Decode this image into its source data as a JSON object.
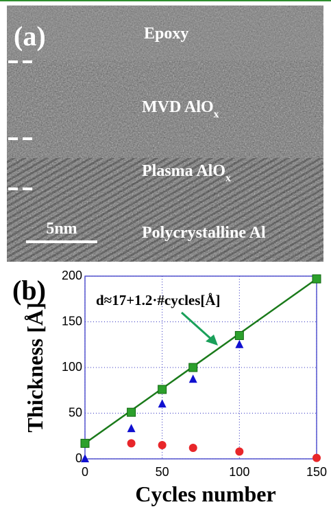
{
  "panel_a": {
    "label": "(a)",
    "layers": [
      {
        "label": "Epoxy"
      },
      {
        "label": "MVD AlO",
        "subscript": "x"
      },
      {
        "label": "Plasma AlO",
        "subscript": "x"
      },
      {
        "label": "Polycrystalline Al"
      }
    ],
    "scale_bar": "5nm"
  },
  "chart_data": {
    "type": "scatter",
    "panel_label": "(b)",
    "annotation": "d≈17+1.2·#cycles[Å]",
    "x_label": "Cycles number",
    "y_label": "Thickness [Å]",
    "xlim": [
      0,
      150
    ],
    "ylim": [
      0,
      200
    ],
    "xticks": [
      0,
      50,
      100,
      150
    ],
    "yticks": [
      0,
      50,
      100,
      150,
      200
    ],
    "grid": true,
    "series": [
      {
        "color": "#1a7a1a",
        "marker": "line",
        "x": [
          0,
          150
        ],
        "values": [
          17,
          197
        ]
      },
      {
        "color": "#2ca02c",
        "marker": "square",
        "x": [
          0,
          30,
          50,
          70,
          100,
          150
        ],
        "values": [
          17,
          51,
          76,
          100,
          135,
          197
        ]
      },
      {
        "color": "#1010d0",
        "marker": "triangle",
        "x": [
          0,
          30,
          50,
          70,
          100
        ],
        "values": [
          0,
          33,
          60,
          87,
          125
        ]
      },
      {
        "color": "#e8262a",
        "marker": "circle",
        "x": [
          30,
          50,
          70,
          100,
          150
        ],
        "values": [
          17,
          15,
          12,
          8,
          1
        ]
      }
    ]
  }
}
